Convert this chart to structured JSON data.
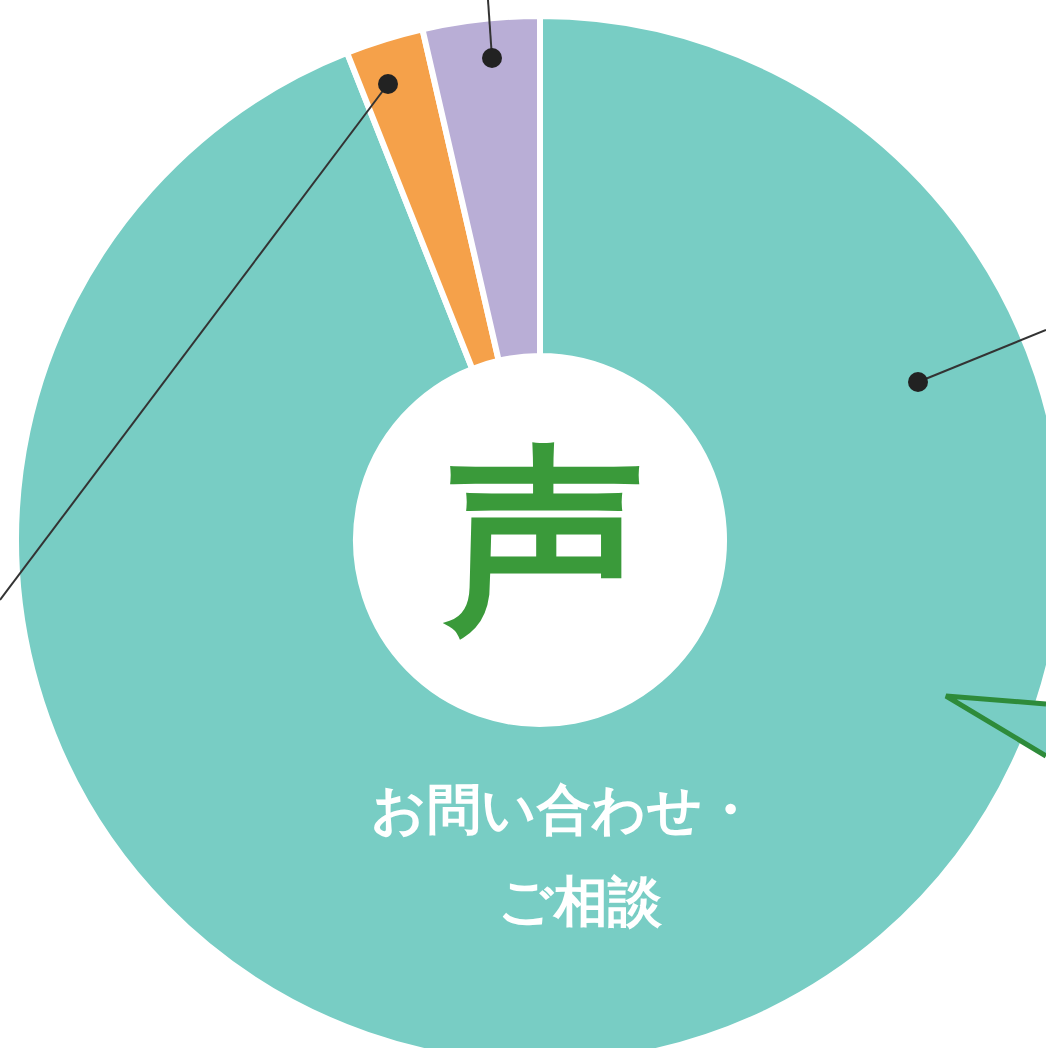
{
  "chart_data": {
    "type": "donut",
    "categories": [
      "お問い合わせ・ご相談",
      null,
      null
    ],
    "values": [
      94,
      2.4,
      3.6
    ],
    "colors": [
      "#78cdc4",
      "#f5a14a",
      "#b9aed6"
    ],
    "annotations": [
      "声"
    ]
  }
}
